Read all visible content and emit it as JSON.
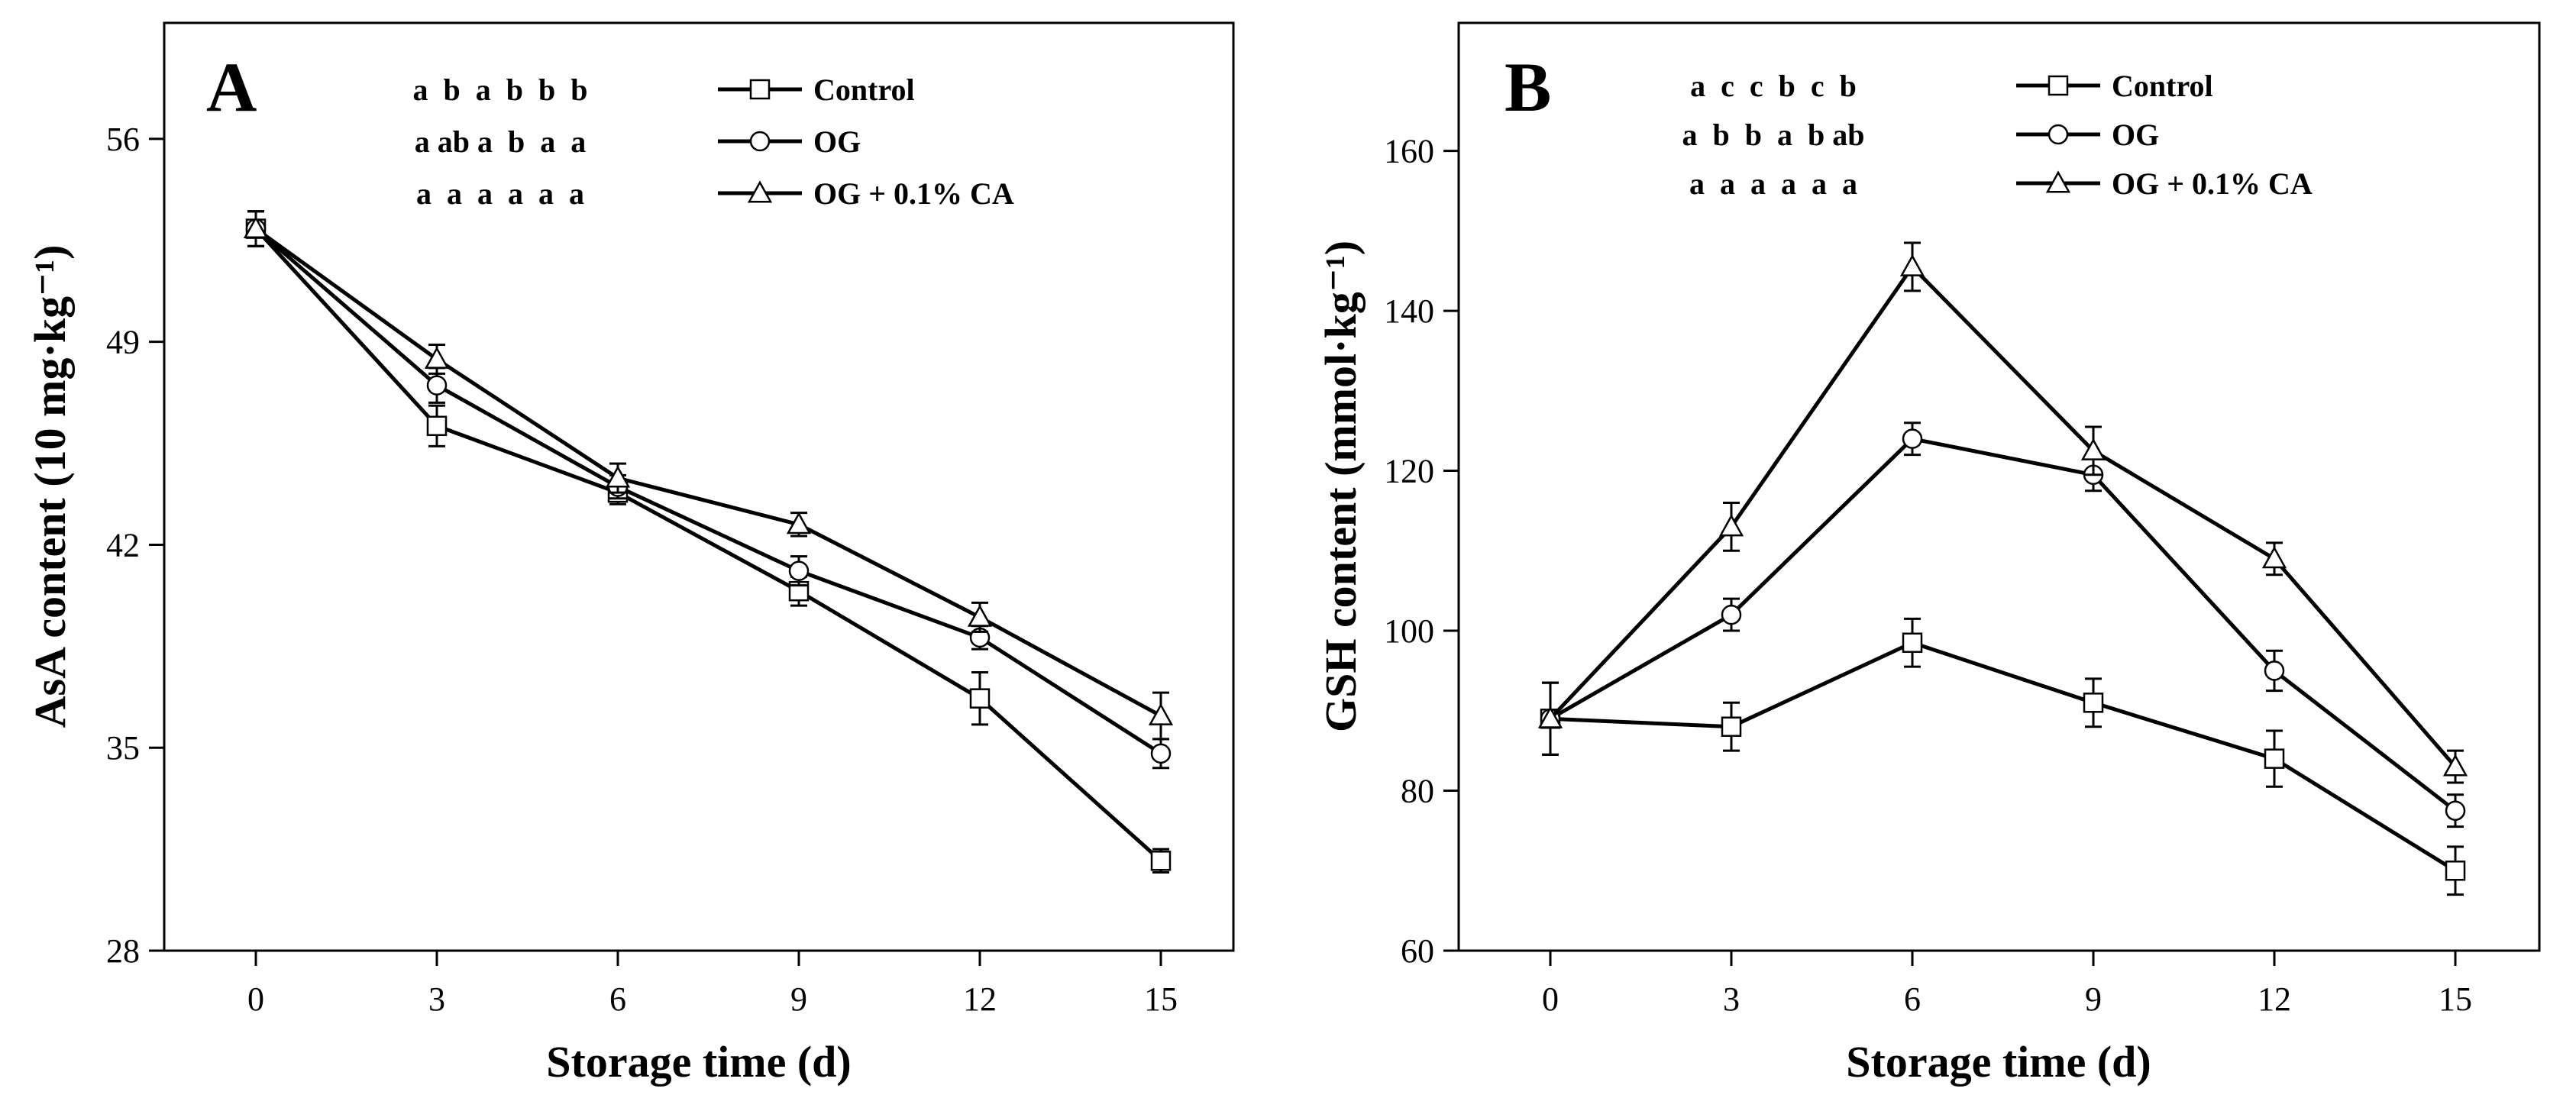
{
  "chart_data": [
    {
      "type": "line",
      "panel_label": "A",
      "xlabel": "Storage time (d)",
      "ylabel": "AsA content (10 mg·kg⁻¹)",
      "x": [
        0,
        3,
        6,
        9,
        12,
        15
      ],
      "x_ticks": [
        "0",
        "3",
        "6",
        "9",
        "12",
        "15"
      ],
      "ylim": [
        28,
        60
      ],
      "y_ticks": [
        28,
        35,
        42,
        49,
        56
      ],
      "legend_position": "top-center",
      "series": [
        {
          "name": "Control",
          "marker": "square",
          "significance": "a  b  a  b  b  b",
          "values": [
            52.9,
            46.1,
            43.8,
            40.4,
            36.7,
            31.1
          ],
          "errors": [
            0.6,
            0.7,
            0.4,
            0.5,
            0.9,
            0.4
          ]
        },
        {
          "name": "OG",
          "marker": "circle",
          "significance": "a ab a  b  a  a",
          "values": [
            52.9,
            47.5,
            44.0,
            41.1,
            38.8,
            34.8
          ],
          "errors": [
            0.6,
            0.6,
            0.4,
            0.5,
            0.4,
            0.5
          ]
        },
        {
          "name": "OG + 0.1% CA",
          "marker": "triangle",
          "significance": "a  a  a  a  a  a",
          "values": [
            52.9,
            48.4,
            44.3,
            42.7,
            39.5,
            36.1
          ],
          "errors": [
            0.6,
            0.5,
            0.5,
            0.4,
            0.5,
            0.8
          ]
        }
      ]
    },
    {
      "type": "line",
      "panel_label": "B",
      "xlabel": "Storage time (d)",
      "ylabel": "GSH content (mmol·kg⁻¹)",
      "x": [
        0,
        3,
        6,
        9,
        12,
        15
      ],
      "x_ticks": [
        "0",
        "3",
        "6",
        "9",
        "12",
        "15"
      ],
      "ylim": [
        60,
        176
      ],
      "y_ticks": [
        60,
        80,
        100,
        120,
        140,
        160
      ],
      "legend_position": "top-center",
      "series": [
        {
          "name": "Control",
          "marker": "square",
          "significance": "a  c  c  b  c  b",
          "values": [
            89,
            88,
            98.5,
            91,
            84,
            70
          ],
          "errors": [
            4.5,
            3,
            3,
            3,
            3.5,
            3
          ]
        },
        {
          "name": "OG",
          "marker": "circle",
          "significance": "a  b  b  a  b ab",
          "values": [
            89,
            102,
            124,
            119.5,
            95,
            77.5
          ],
          "errors": [
            4.5,
            2,
            2,
            2,
            2.5,
            2
          ]
        },
        {
          "name": "OG + 0.1% CA",
          "marker": "triangle",
          "significance": "a  a  a  a  a  a",
          "values": [
            89,
            113,
            145.5,
            122.5,
            109,
            83
          ],
          "errors": [
            4.5,
            3,
            3,
            3,
            2,
            2
          ]
        }
      ]
    }
  ]
}
